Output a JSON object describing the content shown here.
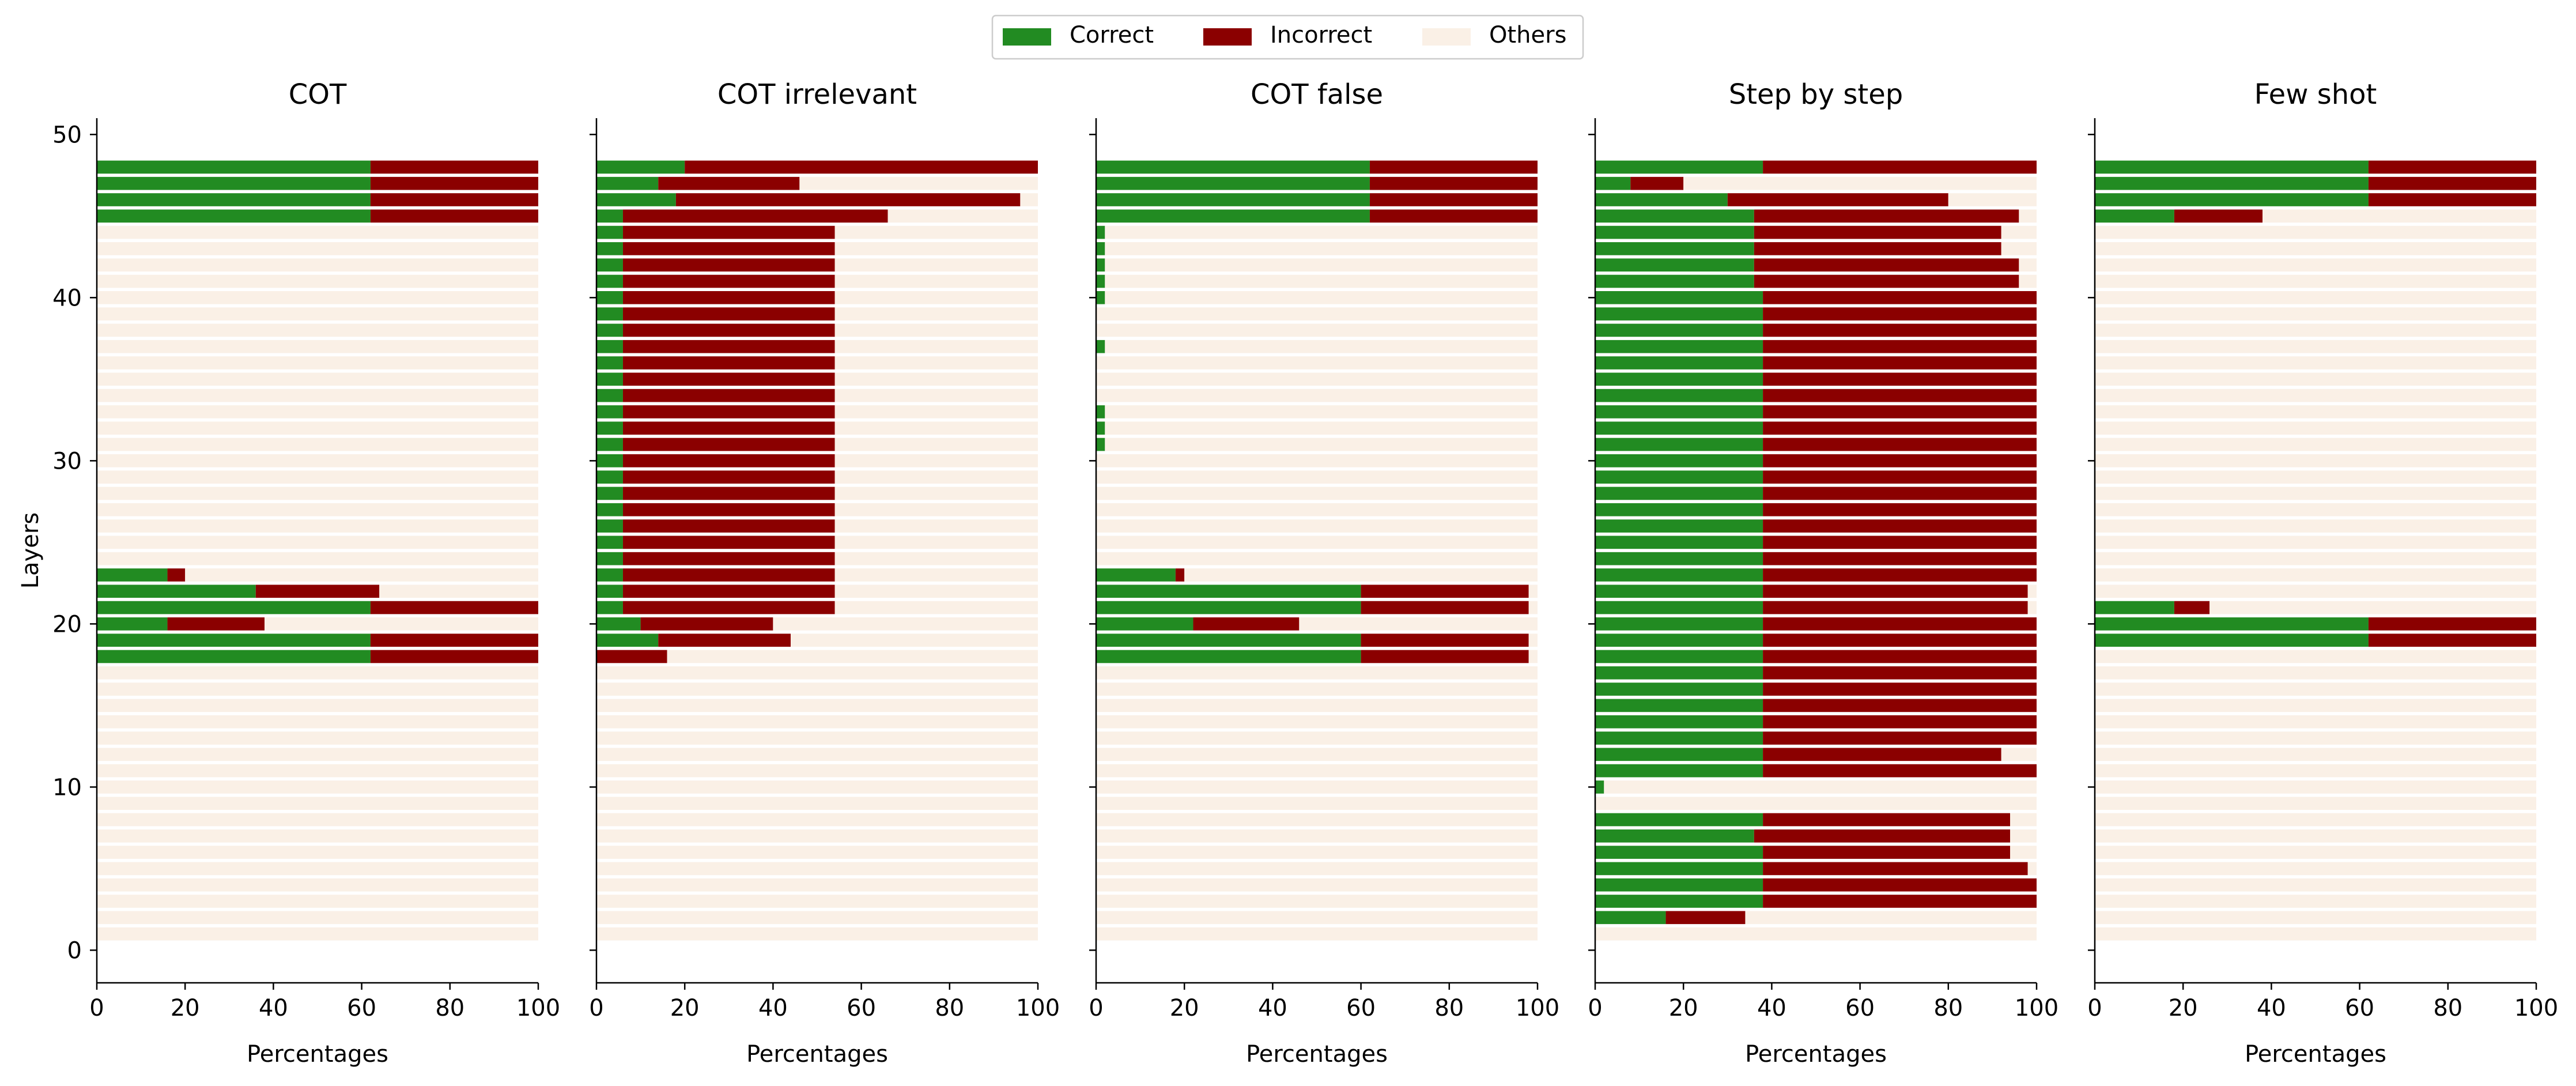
{
  "legend": {
    "placement": "top-center",
    "items": [
      {
        "label": "Correct",
        "color": "#228b22"
      },
      {
        "label": "Incorrect",
        "color": "#8b0000"
      },
      {
        "label": "Others",
        "color": "#faf0e6"
      }
    ]
  },
  "chart_data": [
    {
      "type": "bar",
      "orientation": "horizontal-stacked",
      "title": "COT",
      "xlabel": "Percentages",
      "ylabel": "Layers",
      "xlim": [
        0,
        100
      ],
      "ylim": [
        -2,
        51
      ],
      "xticks": [
        0,
        20,
        40,
        60,
        80,
        100
      ],
      "yticks": [
        0,
        10,
        20,
        30,
        40,
        50
      ],
      "layers": [
        1,
        2,
        3,
        4,
        5,
        6,
        7,
        8,
        9,
        10,
        11,
        12,
        13,
        14,
        15,
        16,
        17,
        18,
        19,
        20,
        21,
        22,
        23,
        24,
        25,
        26,
        27,
        28,
        29,
        30,
        31,
        32,
        33,
        34,
        35,
        36,
        37,
        38,
        39,
        40,
        41,
        42,
        43,
        44,
        45,
        46,
        47,
        48
      ],
      "series": [
        {
          "name": "Correct",
          "values": [
            0,
            0,
            0,
            0,
            0,
            0,
            0,
            0,
            0,
            0,
            0,
            0,
            0,
            0,
            0,
            0,
            0,
            62,
            62,
            16,
            62,
            36,
            16,
            0,
            0,
            0,
            0,
            0,
            0,
            0,
            0,
            0,
            0,
            0,
            0,
            0,
            0,
            0,
            0,
            0,
            0,
            0,
            0,
            0,
            62,
            62,
            62,
            62
          ]
        },
        {
          "name": "Incorrect",
          "values": [
            0,
            0,
            0,
            0,
            0,
            0,
            0,
            0,
            0,
            0,
            0,
            0,
            0,
            0,
            0,
            0,
            0,
            38,
            38,
            22,
            38,
            28,
            4,
            0,
            0,
            0,
            0,
            0,
            0,
            0,
            0,
            0,
            0,
            0,
            0,
            0,
            0,
            0,
            0,
            0,
            0,
            0,
            0,
            0,
            38,
            38,
            38,
            38
          ]
        }
      ]
    },
    {
      "type": "bar",
      "orientation": "horizontal-stacked",
      "title": "COT irrelevant",
      "xlabel": "Percentages",
      "ylabel": "",
      "xlim": [
        0,
        100
      ],
      "ylim": [
        -2,
        51
      ],
      "xticks": [
        0,
        20,
        40,
        60,
        80,
        100
      ],
      "yticks": [
        0,
        10,
        20,
        30,
        40,
        50
      ],
      "layers": [
        1,
        2,
        3,
        4,
        5,
        6,
        7,
        8,
        9,
        10,
        11,
        12,
        13,
        14,
        15,
        16,
        17,
        18,
        19,
        20,
        21,
        22,
        23,
        24,
        25,
        26,
        27,
        28,
        29,
        30,
        31,
        32,
        33,
        34,
        35,
        36,
        37,
        38,
        39,
        40,
        41,
        42,
        43,
        44,
        45,
        46,
        47,
        48
      ],
      "series": [
        {
          "name": "Correct",
          "values": [
            0,
            0,
            0,
            0,
            0,
            0,
            0,
            0,
            0,
            0,
            0,
            0,
            0,
            0,
            0,
            0,
            0,
            0,
            14,
            10,
            6,
            6,
            6,
            6,
            6,
            6,
            6,
            6,
            6,
            6,
            6,
            6,
            6,
            6,
            6,
            6,
            6,
            6,
            6,
            6,
            6,
            6,
            6,
            6,
            6,
            18,
            14,
            20
          ]
        },
        {
          "name": "Incorrect",
          "values": [
            0,
            0,
            0,
            0,
            0,
            0,
            0,
            0,
            0,
            0,
            0,
            0,
            0,
            0,
            0,
            0,
            0,
            16,
            30,
            30,
            48,
            48,
            48,
            48,
            48,
            48,
            48,
            48,
            48,
            48,
            48,
            48,
            48,
            48,
            48,
            48,
            48,
            48,
            48,
            48,
            48,
            48,
            48,
            48,
            60,
            78,
            32,
            80
          ]
        }
      ]
    },
    {
      "type": "bar",
      "orientation": "horizontal-stacked",
      "title": "COT false",
      "xlabel": "Percentages",
      "ylabel": "",
      "xlim": [
        0,
        100
      ],
      "ylim": [
        -2,
        51
      ],
      "xticks": [
        0,
        20,
        40,
        60,
        80,
        100
      ],
      "yticks": [
        0,
        10,
        20,
        30,
        40,
        50
      ],
      "layers": [
        1,
        2,
        3,
        4,
        5,
        6,
        7,
        8,
        9,
        10,
        11,
        12,
        13,
        14,
        15,
        16,
        17,
        18,
        19,
        20,
        21,
        22,
        23,
        24,
        25,
        26,
        27,
        28,
        29,
        30,
        31,
        32,
        33,
        34,
        35,
        36,
        37,
        38,
        39,
        40,
        41,
        42,
        43,
        44,
        45,
        46,
        47,
        48
      ],
      "series": [
        {
          "name": "Correct",
          "values": [
            0,
            0,
            0,
            0,
            0,
            0,
            0,
            0,
            0,
            0,
            0,
            0,
            0,
            0,
            0,
            0,
            0,
            60,
            60,
            22,
            60,
            60,
            18,
            0,
            0,
            0,
            0,
            0,
            0,
            0,
            2,
            2,
            2,
            0,
            0,
            0,
            2,
            0,
            0,
            2,
            2,
            2,
            2,
            2,
            62,
            62,
            62,
            62
          ]
        },
        {
          "name": "Incorrect",
          "values": [
            0,
            0,
            0,
            0,
            0,
            0,
            0,
            0,
            0,
            0,
            0,
            0,
            0,
            0,
            0,
            0,
            0,
            38,
            38,
            24,
            38,
            38,
            2,
            0,
            0,
            0,
            0,
            0,
            0,
            0,
            0,
            0,
            0,
            0,
            0,
            0,
            0,
            0,
            0,
            0,
            0,
            0,
            0,
            0,
            38,
            38,
            38,
            38
          ]
        }
      ]
    },
    {
      "type": "bar",
      "orientation": "horizontal-stacked",
      "title": "Step by step",
      "xlabel": "Percentages",
      "ylabel": "",
      "xlim": [
        0,
        100
      ],
      "ylim": [
        -2,
        51
      ],
      "xticks": [
        0,
        20,
        40,
        60,
        80,
        100
      ],
      "yticks": [
        0,
        10,
        20,
        30,
        40,
        50
      ],
      "layers": [
        1,
        2,
        3,
        4,
        5,
        6,
        7,
        8,
        9,
        10,
        11,
        12,
        13,
        14,
        15,
        16,
        17,
        18,
        19,
        20,
        21,
        22,
        23,
        24,
        25,
        26,
        27,
        28,
        29,
        30,
        31,
        32,
        33,
        34,
        35,
        36,
        37,
        38,
        39,
        40,
        41,
        42,
        43,
        44,
        45,
        46,
        47,
        48
      ],
      "series": [
        {
          "name": "Correct",
          "values": [
            0,
            16,
            38,
            38,
            38,
            38,
            36,
            38,
            0,
            2,
            38,
            38,
            38,
            38,
            38,
            38,
            38,
            38,
            38,
            38,
            38,
            38,
            38,
            38,
            38,
            38,
            38,
            38,
            38,
            38,
            38,
            38,
            38,
            38,
            38,
            38,
            38,
            38,
            38,
            38,
            36,
            36,
            36,
            36,
            36,
            30,
            8,
            38
          ]
        },
        {
          "name": "Incorrect",
          "values": [
            0,
            18,
            62,
            62,
            60,
            56,
            58,
            56,
            0,
            0,
            62,
            54,
            62,
            62,
            62,
            62,
            62,
            62,
            62,
            62,
            60,
            60,
            62,
            62,
            62,
            62,
            62,
            62,
            62,
            62,
            62,
            62,
            62,
            62,
            62,
            62,
            62,
            62,
            62,
            62,
            60,
            60,
            56,
            56,
            60,
            50,
            12,
            62
          ]
        }
      ]
    },
    {
      "type": "bar",
      "orientation": "horizontal-stacked",
      "title": "Few shot",
      "xlabel": "Percentages",
      "ylabel": "",
      "xlim": [
        0,
        100
      ],
      "ylim": [
        -2,
        51
      ],
      "xticks": [
        0,
        20,
        40,
        60,
        80,
        100
      ],
      "yticks": [
        0,
        10,
        20,
        30,
        40,
        50
      ],
      "layers": [
        1,
        2,
        3,
        4,
        5,
        6,
        7,
        8,
        9,
        10,
        11,
        12,
        13,
        14,
        15,
        16,
        17,
        18,
        19,
        20,
        21,
        22,
        23,
        24,
        25,
        26,
        27,
        28,
        29,
        30,
        31,
        32,
        33,
        34,
        35,
        36,
        37,
        38,
        39,
        40,
        41,
        42,
        43,
        44,
        45,
        46,
        47,
        48
      ],
      "series": [
        {
          "name": "Correct",
          "values": [
            0,
            0,
            0,
            0,
            0,
            0,
            0,
            0,
            0,
            0,
            0,
            0,
            0,
            0,
            0,
            0,
            0,
            0,
            62,
            62,
            18,
            0,
            0,
            0,
            0,
            0,
            0,
            0,
            0,
            0,
            0,
            0,
            0,
            0,
            0,
            0,
            0,
            0,
            0,
            0,
            0,
            0,
            0,
            0,
            18,
            62,
            62,
            62
          ]
        },
        {
          "name": "Incorrect",
          "values": [
            0,
            0,
            0,
            0,
            0,
            0,
            0,
            0,
            0,
            0,
            0,
            0,
            0,
            0,
            0,
            0,
            0,
            0,
            38,
            38,
            8,
            0,
            0,
            0,
            0,
            0,
            0,
            0,
            0,
            0,
            0,
            0,
            0,
            0,
            0,
            0,
            0,
            0,
            0,
            0,
            0,
            0,
            0,
            0,
            20,
            38,
            38,
            38
          ]
        }
      ]
    }
  ]
}
